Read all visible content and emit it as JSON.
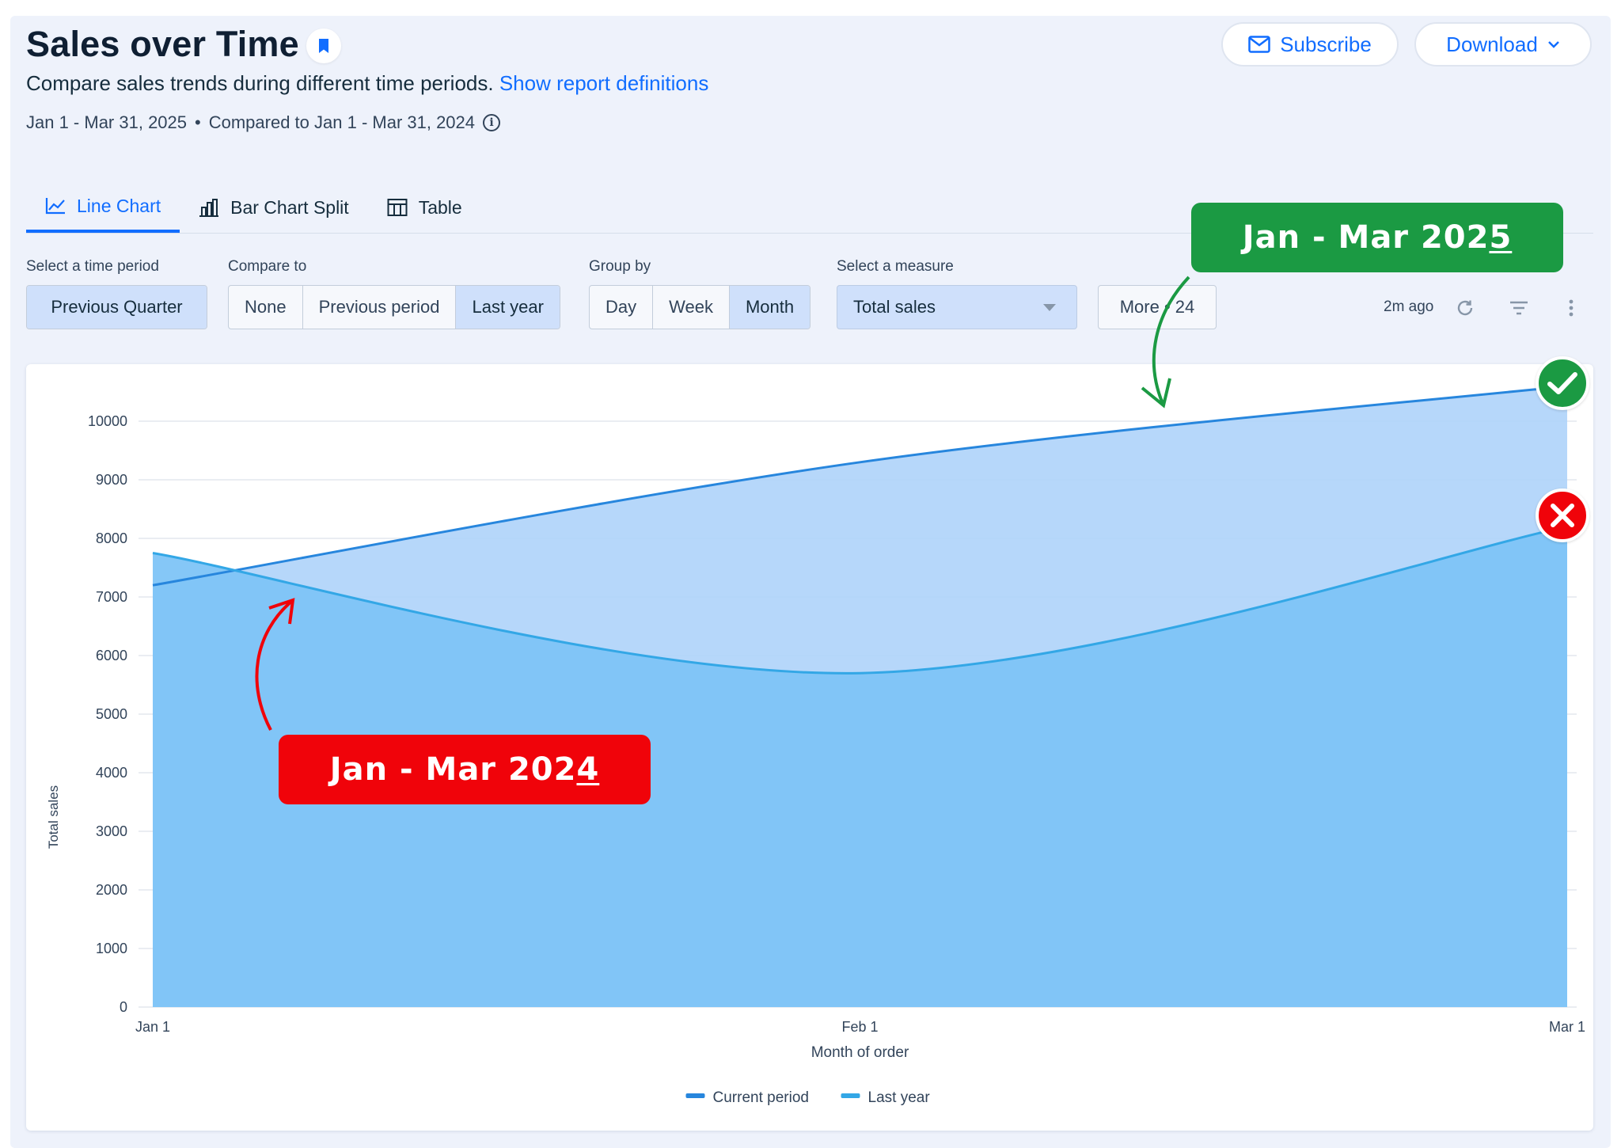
{
  "header": {
    "title": "Sales over Time",
    "subtitle": "Compare sales trends during different time periods.",
    "definitions_link": "Show report definitions",
    "date_range": "Jan 1 - Mar 31, 2025",
    "separator": "•",
    "compared_to": "Compared to Jan 1 - Mar 31, 2024",
    "subscribe_label": "Subscribe",
    "download_label": "Download"
  },
  "tabs": [
    {
      "label": "Line Chart",
      "icon": "line-chart-icon",
      "active": true
    },
    {
      "label": "Bar Chart Split",
      "icon": "bar-chart-icon",
      "active": false
    },
    {
      "label": "Table",
      "icon": "table-icon",
      "active": false
    }
  ],
  "controls": {
    "time_period_label": "Select a time period",
    "time_period_value": "Previous Quarter",
    "compare_label": "Compare to",
    "compare_options": [
      "None",
      "Previous period",
      "Last year"
    ],
    "compare_selected": "Last year",
    "group_label": "Group by",
    "group_options": [
      "Day",
      "Week",
      "Month"
    ],
    "group_selected": "Month",
    "measure_label": "Select a measure",
    "measure_value": "Total sales",
    "more_label": "More • 24",
    "updated": "2m ago"
  },
  "annotations": {
    "current_label": "Jan - Mar 202",
    "current_label_last": "5",
    "previous_label": "Jan - Mar 202",
    "previous_label_last": "4"
  },
  "colors": {
    "accent": "#116dff",
    "current_fill": "#aed3f9",
    "previous_fill": "#7ec4f7",
    "current_line": "#2786dd",
    "previous_line": "#33a7e6",
    "good": "#1b9a43",
    "bad": "#f0030a"
  },
  "chart_data": {
    "type": "area",
    "x": [
      "Jan 1",
      "Feb 1",
      "Mar 1"
    ],
    "xlabel": "Month of order",
    "ylabel": "Total sales",
    "ylim": [
      0,
      10000
    ],
    "yticks": [
      0,
      1000,
      2000,
      3000,
      4000,
      5000,
      6000,
      7000,
      8000,
      9000,
      10000
    ],
    "grid": true,
    "legend_position": "bottom",
    "series": [
      {
        "name": "Current period",
        "values": [
          7200,
          9300,
          10600
        ]
      },
      {
        "name": "Last year",
        "values": [
          7750,
          5700,
          8200
        ]
      }
    ]
  }
}
